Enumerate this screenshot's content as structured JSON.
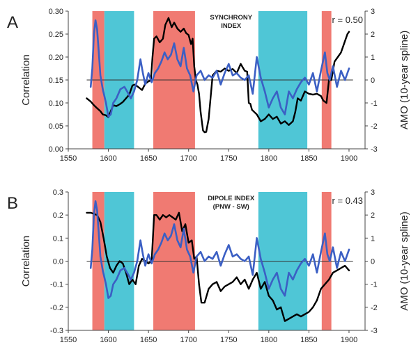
{
  "chart_data": [
    {
      "type": "line",
      "panel_label": "A",
      "title": "SYNCHRONY",
      "subtitle": "INDEX",
      "annotation": "r = 0.50",
      "ylabel_left": "Correlation",
      "ylabel_right": "AMO (10-year spline)",
      "xlim": [
        1550,
        1920
      ],
      "ylim_left": [
        0.0,
        0.3
      ],
      "ylim_right": [
        -3,
        3
      ],
      "x_ticks": [
        "1550",
        "1600",
        "1650",
        "1700",
        "1750",
        "1800",
        "1850",
        "1900"
      ],
      "left_ticks": [
        "0.00",
        "0.05",
        "0.10",
        "0.15",
        "0.20",
        "0.25",
        "0.30"
      ],
      "right_ticks": [
        "-3",
        "-2",
        "-1",
        "0",
        "1",
        "2",
        "3"
      ],
      "shaded_periods": [
        {
          "start": 1580,
          "end": 1595,
          "color": "#f07a72"
        },
        {
          "start": 1595,
          "end": 1632,
          "color": "#4fc6d6"
        },
        {
          "start": 1656,
          "end": 1708,
          "color": "#f07a72"
        },
        {
          "start": 1787,
          "end": 1848,
          "color": "#4fc6d6"
        },
        {
          "start": 1866,
          "end": 1878,
          "color": "#f07a72"
        }
      ],
      "series": [
        {
          "axis": "left",
          "color": "#000000",
          "x": [
            1573,
            1578,
            1582,
            1585,
            1590,
            1593,
            1597,
            1600,
            1603,
            1606,
            1610,
            1614,
            1618,
            1622,
            1626,
            1630,
            1633,
            1637,
            1642,
            1646,
            1650,
            1653,
            1655,
            1657,
            1660,
            1664,
            1668,
            1671,
            1675,
            1679,
            1682,
            1686,
            1690,
            1694,
            1697,
            1700,
            1703,
            1705,
            1707,
            1709,
            1711,
            1713,
            1715,
            1718,
            1720,
            1722,
            1725,
            1730,
            1735,
            1740,
            1745,
            1750,
            1755,
            1760,
            1765,
            1770,
            1773,
            1775,
            1777,
            1779,
            1782,
            1785,
            1790,
            1795,
            1800,
            1805,
            1810,
            1815,
            1820,
            1825,
            1830,
            1833,
            1836,
            1840,
            1845,
            1850,
            1855,
            1860,
            1865,
            1868,
            1872,
            1875,
            1878,
            1882,
            1886,
            1890,
            1894,
            1898,
            1900
          ],
          "values": [
            0.11,
            0.103,
            0.095,
            0.09,
            0.082,
            0.075,
            0.073,
            0.069,
            0.082,
            0.095,
            0.093,
            0.097,
            0.102,
            0.11,
            0.118,
            0.138,
            0.14,
            0.135,
            0.128,
            0.142,
            0.147,
            0.149,
            0.2,
            0.24,
            0.245,
            0.232,
            0.24,
            0.27,
            0.285,
            0.265,
            0.275,
            0.262,
            0.255,
            0.262,
            0.252,
            0.248,
            0.228,
            0.24,
            0.18,
            0.15,
            0.14,
            0.12,
            0.08,
            0.04,
            0.036,
            0.037,
            0.065,
            0.16,
            0.17,
            0.168,
            0.175,
            0.17,
            0.174,
            0.165,
            0.185,
            0.17,
            0.168,
            0.1,
            0.098,
            0.085,
            0.08,
            0.075,
            0.06,
            0.065,
            0.075,
            0.065,
            0.07,
            0.055,
            0.06,
            0.052,
            0.06,
            0.08,
            0.11,
            0.105,
            0.125,
            0.12,
            0.118,
            0.12,
            0.115,
            0.105,
            0.1,
            0.15,
            0.15,
            0.19,
            0.2,
            0.21,
            0.23,
            0.25,
            0.255
          ]
        },
        {
          "axis": "right",
          "color": "#3b5fc4",
          "x": [
            1578,
            1580,
            1582,
            1584,
            1586,
            1588,
            1590,
            1593,
            1597,
            1600,
            1603,
            1606,
            1610,
            1615,
            1620,
            1625,
            1628,
            1632,
            1636,
            1640,
            1643,
            1646,
            1650,
            1654,
            1658,
            1662,
            1666,
            1670,
            1674,
            1678,
            1682,
            1686,
            1690,
            1694,
            1698,
            1702,
            1706,
            1710,
            1715,
            1720,
            1725,
            1730,
            1735,
            1740,
            1745,
            1750,
            1755,
            1760,
            1765,
            1770,
            1775,
            1780,
            1785,
            1790,
            1795,
            1800,
            1805,
            1810,
            1815,
            1820,
            1825,
            1830,
            1835,
            1840,
            1845,
            1850,
            1855,
            1860,
            1865,
            1870,
            1873,
            1876,
            1880,
            1885,
            1890,
            1895,
            1900
          ],
          "values": [
            -0.3,
            0.5,
            2.0,
            2.6,
            2.2,
            1.2,
            0.2,
            -0.4,
            -1.0,
            -1.6,
            -1.5,
            -1.0,
            -0.8,
            -0.4,
            -0.3,
            -0.6,
            -0.8,
            -0.5,
            0.0,
            0.9,
            0.3,
            -0.2,
            0.3,
            -0.1,
            0.3,
            0.5,
            0.8,
            1.2,
            0.9,
            1.1,
            1.6,
            0.9,
            0.6,
            1.4,
            0.5,
            0.2,
            -0.5,
            0.2,
            0.4,
            0.0,
            0.2,
            0.1,
            0.4,
            -0.2,
            0.3,
            0.7,
            0.2,
            0.3,
            0.1,
            0.0,
            0.2,
            -0.6,
            1.0,
            0.1,
            -0.5,
            -1.2,
            -0.8,
            -0.5,
            -1.2,
            -1.5,
            -0.5,
            -0.8,
            -0.4,
            -0.1,
            0.1,
            -0.2,
            0.3,
            -0.5,
            0.4,
            1.2,
            0.3,
            0.0,
            0.6,
            -0.3,
            0.4,
            0.0,
            0.5
          ]
        }
      ]
    },
    {
      "type": "line",
      "panel_label": "B",
      "title": "DIPOLE INDEX",
      "subtitle": "(PNW - SW)",
      "annotation": "r = 0.43",
      "ylabel_left": "Correlation",
      "ylabel_right": "AMO (10-year spline)",
      "xlim": [
        1550,
        1920
      ],
      "ylim_left": [
        -0.3,
        0.3
      ],
      "ylim_right": [
        -3,
        3
      ],
      "x_ticks": [
        "1550",
        "1600",
        "1650",
        "1700",
        "1750",
        "1800",
        "1850",
        "1900"
      ],
      "left_ticks": [
        "-0.3",
        "-0.2",
        "-0.1",
        "0.0",
        "0.1",
        "0.2",
        "0.3"
      ],
      "right_ticks": [
        "-3",
        "-2",
        "-1",
        "0",
        "1",
        "2",
        "3"
      ],
      "shaded_periods": [
        {
          "start": 1580,
          "end": 1595,
          "color": "#f07a72"
        },
        {
          "start": 1595,
          "end": 1632,
          "color": "#4fc6d6"
        },
        {
          "start": 1656,
          "end": 1708,
          "color": "#f07a72"
        },
        {
          "start": 1787,
          "end": 1848,
          "color": "#4fc6d6"
        },
        {
          "start": 1866,
          "end": 1878,
          "color": "#f07a72"
        }
      ],
      "series": [
        {
          "axis": "left",
          "color": "#000000",
          "x": [
            1573,
            1578,
            1582,
            1586,
            1590,
            1594,
            1598,
            1602,
            1606,
            1610,
            1614,
            1618,
            1622,
            1626,
            1630,
            1634,
            1638,
            1642,
            1646,
            1650,
            1654,
            1657,
            1660,
            1664,
            1668,
            1672,
            1676,
            1680,
            1684,
            1688,
            1692,
            1696,
            1700,
            1704,
            1707,
            1710,
            1713,
            1716,
            1720,
            1725,
            1730,
            1735,
            1740,
            1745,
            1750,
            1755,
            1760,
            1765,
            1770,
            1775,
            1780,
            1785,
            1790,
            1795,
            1800,
            1805,
            1810,
            1815,
            1820,
            1825,
            1830,
            1835,
            1840,
            1845,
            1850,
            1855,
            1860,
            1865,
            1870,
            1875,
            1880,
            1885,
            1890,
            1895,
            1900
          ],
          "values": [
            0.21,
            0.21,
            0.205,
            0.2,
            0.17,
            0.1,
            0.02,
            -0.03,
            -0.05,
            -0.02,
            0.0,
            -0.01,
            -0.05,
            -0.1,
            -0.08,
            -0.1,
            -0.02,
            0.01,
            0.0,
            -0.01,
            0.0,
            0.2,
            0.2,
            0.18,
            0.2,
            0.19,
            0.2,
            0.19,
            0.18,
            0.21,
            0.13,
            0.16,
            0.08,
            0.09,
            0.01,
            0.02,
            -0.1,
            -0.18,
            -0.18,
            -0.12,
            -0.1,
            -0.09,
            -0.13,
            -0.11,
            -0.1,
            -0.09,
            -0.07,
            -0.1,
            -0.08,
            -0.12,
            -0.08,
            -0.05,
            -0.12,
            -0.09,
            -0.15,
            -0.17,
            -0.21,
            -0.2,
            -0.26,
            -0.25,
            -0.24,
            -0.23,
            -0.24,
            -0.23,
            -0.22,
            -0.2,
            -0.17,
            -0.12,
            -0.1,
            -0.08,
            -0.05,
            -0.04,
            -0.03,
            -0.02,
            -0.04
          ]
        },
        {
          "axis": "right",
          "color": "#3b5fc4",
          "x": [
            1578,
            1580,
            1582,
            1584,
            1586,
            1588,
            1590,
            1593,
            1597,
            1600,
            1603,
            1606,
            1610,
            1615,
            1620,
            1625,
            1628,
            1632,
            1636,
            1640,
            1643,
            1646,
            1650,
            1654,
            1658,
            1662,
            1666,
            1670,
            1674,
            1678,
            1682,
            1686,
            1690,
            1694,
            1698,
            1702,
            1706,
            1710,
            1715,
            1720,
            1725,
            1730,
            1735,
            1740,
            1745,
            1750,
            1755,
            1760,
            1765,
            1770,
            1775,
            1780,
            1785,
            1790,
            1795,
            1800,
            1805,
            1810,
            1815,
            1820,
            1825,
            1830,
            1835,
            1840,
            1845,
            1850,
            1855,
            1860,
            1865,
            1870,
            1873,
            1876,
            1880,
            1885,
            1890,
            1895,
            1900
          ],
          "values": [
            -0.3,
            0.5,
            2.0,
            2.6,
            2.2,
            1.2,
            0.2,
            -0.4,
            -1.0,
            -1.6,
            -1.5,
            -1.0,
            -0.8,
            -0.4,
            -0.3,
            -0.6,
            -0.8,
            -0.5,
            0.0,
            0.9,
            0.3,
            -0.2,
            0.3,
            -0.1,
            0.3,
            0.5,
            0.8,
            1.2,
            0.9,
            1.1,
            1.6,
            0.9,
            0.6,
            1.4,
            0.5,
            0.2,
            -0.5,
            0.2,
            0.4,
            0.0,
            0.2,
            0.1,
            0.4,
            -0.2,
            0.3,
            0.7,
            0.2,
            0.3,
            0.1,
            0.0,
            0.2,
            -0.6,
            1.0,
            0.1,
            -0.5,
            -1.2,
            -0.8,
            -0.5,
            -1.2,
            -1.5,
            -0.5,
            -0.8,
            -0.4,
            -0.1,
            0.1,
            -0.2,
            0.3,
            -0.5,
            0.4,
            1.2,
            0.3,
            0.0,
            0.6,
            -0.3,
            0.4,
            0.0,
            0.5
          ]
        }
      ]
    }
  ]
}
